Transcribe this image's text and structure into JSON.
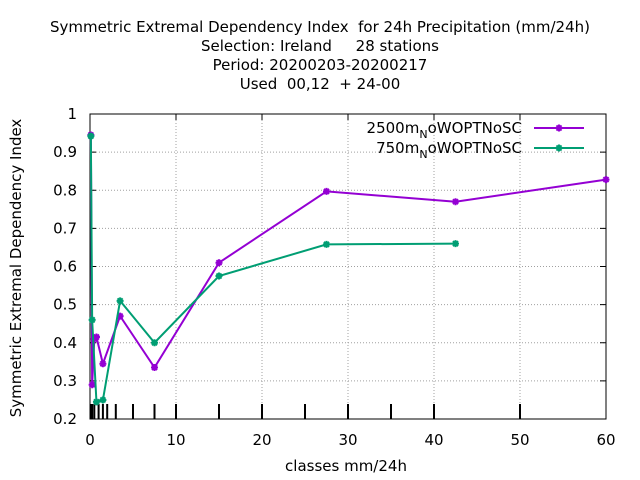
{
  "chart_data": {
    "type": "line",
    "title_lines": [
      "Symmetric Extremal Dependency Index  for 24h Precipitation (mm/24h)",
      "Selection: Ireland     28 stations",
      "Period: 20200203-20200217",
      "Used  00,12  + 24-00"
    ],
    "xlabel": "classes mm/24h",
    "ylabel": "Symmetric Extremal Dependency Index",
    "xlim": [
      0,
      60
    ],
    "ylim": [
      0.2,
      1.0
    ],
    "xticks": [
      0,
      10,
      20,
      30,
      40,
      50,
      60
    ],
    "yticks": [
      0.2,
      0.3,
      0.4,
      0.5,
      0.6,
      0.7,
      0.8,
      0.9,
      1.0
    ],
    "ytick_labels": [
      "0.2",
      "0.3",
      "0.4",
      "0.5",
      "0.6",
      "0.7",
      "0.8",
      "0.9",
      "1"
    ],
    "grid": true,
    "legend_position": "top-right",
    "class_marks": [
      0.1,
      0.25,
      0.5,
      1,
      1.5,
      2,
      3,
      5,
      7.5,
      10,
      15,
      20,
      25,
      30,
      35,
      40,
      50
    ],
    "series": [
      {
        "name_main": "2500m",
        "name_sub": "N",
        "name_rest": "oWOPTNoSC",
        "color": "#9400d3",
        "points": [
          {
            "x": 0.1,
            "y": 0.945
          },
          {
            "x": 0.25,
            "y": 0.29
          },
          {
            "x": 0.5,
            "y": 0.41
          },
          {
            "x": 0.75,
            "y": 0.415
          },
          {
            "x": 1.5,
            "y": 0.345
          },
          {
            "x": 3.5,
            "y": 0.47
          },
          {
            "x": 7.5,
            "y": 0.335
          },
          {
            "x": 15,
            "y": 0.61
          },
          {
            "x": 27.5,
            "y": 0.797
          },
          {
            "x": 42.5,
            "y": 0.77
          },
          {
            "x": 60,
            "y": 0.828
          }
        ]
      },
      {
        "name_main": "750m",
        "name_sub": "N",
        "name_rest": "oWOPTNoSC",
        "color": "#009e73",
        "points": [
          {
            "x": 0.1,
            "y": 0.942
          },
          {
            "x": 0.25,
            "y": 0.46
          },
          {
            "x": 0.75,
            "y": 0.245
          },
          {
            "x": 1.5,
            "y": 0.25
          },
          {
            "x": 3.5,
            "y": 0.51
          },
          {
            "x": 7.5,
            "y": 0.4
          },
          {
            "x": 15,
            "y": 0.575
          },
          {
            "x": 27.5,
            "y": 0.658
          },
          {
            "x": 42.5,
            "y": 0.66
          }
        ]
      }
    ]
  }
}
